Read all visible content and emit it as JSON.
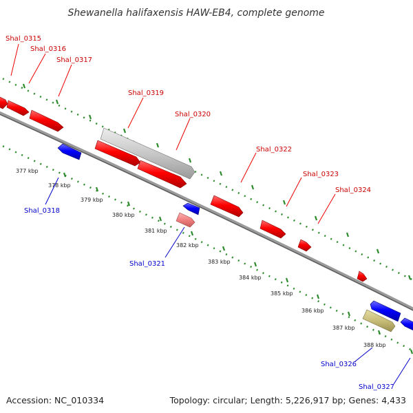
{
  "title": "Shewanella halifaxensis HAW-EB4, complete genome",
  "footer": {
    "accession": "Accession: NC_010334",
    "summary": "Topology: circular; Length: 5,226,917 bp; Genes: 4,433"
  },
  "colors": {
    "forward": "#ff0000",
    "reverse": "#0000ff",
    "forward_label": "#cc0000",
    "reverse_label": "#0000cc",
    "backbone": "#808080",
    "tick": "#2e8b2e",
    "pseudo_light_red": "#f08080",
    "pseudo_gray": "#c8c8c8",
    "pseudo_khaki": "#c8bc78"
  },
  "tick_labels": [
    "377 kbp",
    "378 kbp",
    "379 kbp",
    "380 kbp",
    "381 kbp",
    "382 kbp",
    "383 kbp",
    "384 kbp",
    "385 kbp",
    "386 kbp",
    "387 kbp",
    "388 kbp"
  ],
  "gene_labels_forward": [
    "Shal_0315",
    "Shal_0316",
    "Shal_0317",
    "Shal_0319",
    "Shal_0320",
    "Shal_0322",
    "Shal_0323",
    "Shal_0324"
  ],
  "gene_labels_reverse": [
    "Shal_0318",
    "Shal_0321",
    "Shal_0326",
    "Shal_0327"
  ]
}
